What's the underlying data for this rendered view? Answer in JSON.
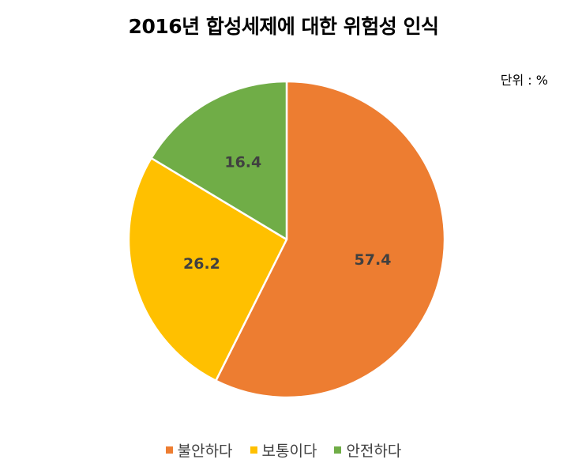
{
  "chart_data": {
    "type": "pie",
    "title": "2016년 합성세제에 대한 위험성 인식",
    "unit": "단위 : %",
    "categories": [
      "불안하다",
      "보통이다",
      "안전하다"
    ],
    "values": [
      57.4,
      26.2,
      16.4
    ],
    "labels": [
      "57.4",
      "26.2",
      "16.4"
    ],
    "colors": [
      "#ED7D31",
      "#FFC000",
      "#70AD47"
    ],
    "label_color": "#404040",
    "legend_position": "bottom",
    "start": "12 o'clock, clockwise"
  }
}
